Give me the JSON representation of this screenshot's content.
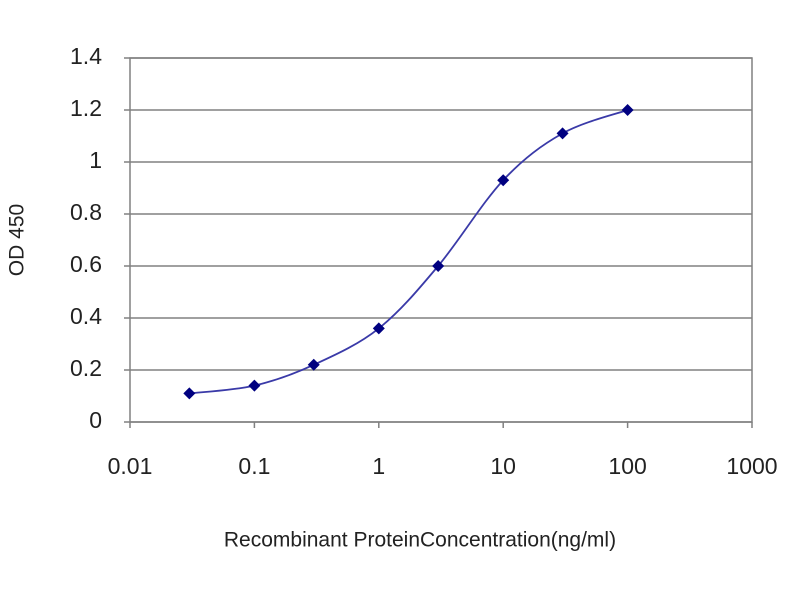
{
  "chart_data": {
    "type": "line",
    "x": [
      0.03,
      0.1,
      0.3,
      1,
      3,
      10,
      30,
      100
    ],
    "series": [
      {
        "color": "#000080",
        "line_color": "#3a3aa8",
        "values": [
          0.11,
          0.14,
          0.22,
          0.36,
          0.6,
          0.93,
          1.11,
          1.2
        ]
      }
    ],
    "xlabel": "Recombinant ProteinConcentration(ng/ml)",
    "ylabel": "OD 450",
    "xscale": "log",
    "xlim": [
      0.01,
      1000
    ],
    "xticks": [
      0.01,
      0.1,
      1,
      10,
      100,
      1000
    ],
    "ylim": [
      0,
      1.4
    ],
    "yticks": [
      0,
      0.2,
      0.4,
      0.6,
      0.8,
      1,
      1.2,
      1.4
    ],
    "grid": true
  }
}
